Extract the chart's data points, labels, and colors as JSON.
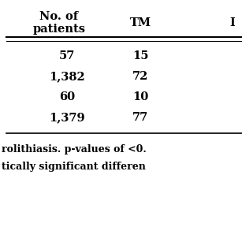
{
  "col1_header_line1": "No. of",
  "col1_header_line2": "patients",
  "col2_header": "TM",
  "col3_header": "I",
  "rows": [
    [
      "57",
      "15"
    ],
    [
      "1,382",
      "72"
    ],
    [
      "60",
      "10"
    ],
    [
      "1,379",
      "77"
    ]
  ],
  "footer_line1": "rolithiasis. p-values of <0.",
  "footer_line2": "tically significant differen",
  "bg_color": "#ffffff",
  "text_color": "#000000",
  "font_size": 10.5,
  "footer_font_size": 9.0
}
